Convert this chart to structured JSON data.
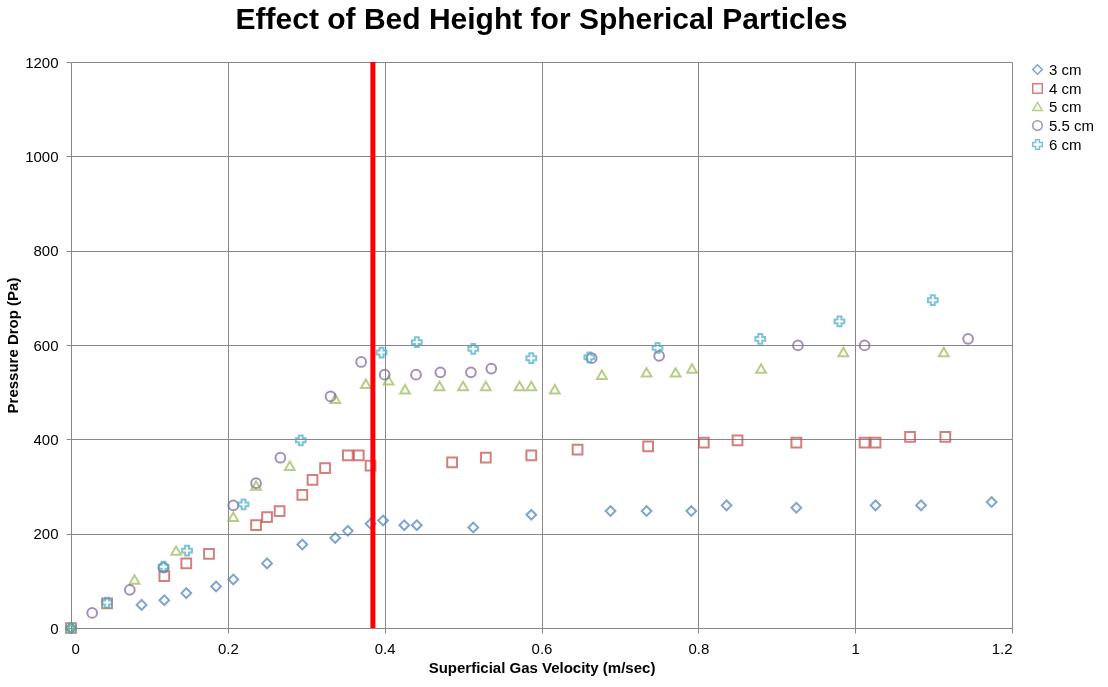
{
  "chart_data": {
    "type": "scatter",
    "title": "Effect of Bed Height for Spherical Particles",
    "xlabel": "Superficial Gas Velocity (m/sec)",
    "ylabel": "Pressure Drop (Pa)",
    "xlim": [
      0,
      1.2
    ],
    "xticks": [
      0,
      0.2,
      0.4,
      0.6,
      0.8,
      1,
      1.2
    ],
    "ylim": [
      0,
      1200
    ],
    "yticks": [
      0,
      200,
      400,
      600,
      800,
      1000,
      1200
    ],
    "grid": true,
    "legend": "right",
    "series": [
      {
        "name": "3 cm",
        "color": "#4a7ebb",
        "marker": "diamond",
        "x": [
          0,
          0.09,
          0.119,
          0.147,
          0.185,
          0.207,
          0.25,
          0.295,
          0.337,
          0.353,
          0.382,
          0.398,
          0.425,
          0.441,
          0.513,
          0.587,
          0.688,
          0.734,
          0.791,
          0.836,
          0.925,
          1.026,
          1.084,
          1.174
        ],
        "values": [
          0,
          49,
          59,
          74,
          88,
          103,
          137,
          177,
          191,
          206,
          221,
          228,
          218,
          218,
          213,
          240,
          248,
          248,
          248,
          260,
          255,
          260,
          260,
          267
        ]
      },
      {
        "name": "4 cm",
        "color": "#be4b48",
        "marker": "square",
        "x": [
          0,
          0.046,
          0.119,
          0.147,
          0.176,
          0.236,
          0.25,
          0.266,
          0.295,
          0.308,
          0.324,
          0.353,
          0.367,
          0.382,
          0.486,
          0.529,
          0.587,
          0.646,
          0.736,
          0.807,
          0.85,
          0.925,
          1.012,
          1.026,
          1.07,
          1.115
        ],
        "values": [
          0,
          52,
          110,
          137,
          157,
          218,
          235,
          248,
          282,
          314,
          339,
          366,
          366,
          344,
          351,
          361,
          366,
          378,
          385,
          393,
          398,
          393,
          393,
          393,
          405,
          405
        ]
      },
      {
        "name": "5 cm",
        "color": "#98b954",
        "marker": "triangle",
        "x": [
          0,
          0.081,
          0.134,
          0.207,
          0.236,
          0.279,
          0.337,
          0.376,
          0.405,
          0.426,
          0.47,
          0.5,
          0.529,
          0.572,
          0.587,
          0.617,
          0.677,
          0.734,
          0.771,
          0.792,
          0.88,
          0.985,
          1.113
        ],
        "values": [
          0,
          103,
          164,
          236,
          302,
          344,
          486,
          518,
          525,
          506,
          513,
          513,
          513,
          513,
          513,
          506,
          537,
          542,
          542,
          550,
          550,
          585,
          585
        ]
      },
      {
        "name": "5.5 cm",
        "color": "#7d60a0",
        "marker": "circle",
        "x": [
          0.027,
          0.075,
          0.118,
          0.207,
          0.236,
          0.267,
          0.331,
          0.37,
          0.4,
          0.44,
          0.471,
          0.51,
          0.536,
          0.664,
          0.75,
          0.927,
          1.012,
          1.144
        ],
        "values": [
          32,
          81,
          128,
          260,
          307,
          361,
          491,
          564,
          537,
          537,
          542,
          542,
          550,
          572,
          577,
          599,
          599,
          613
        ]
      },
      {
        "name": "6 cm",
        "color": "#46aac5",
        "marker": "cross",
        "x": [
          0,
          0.046,
          0.118,
          0.148,
          0.22,
          0.293,
          0.396,
          0.441,
          0.513,
          0.587,
          0.661,
          0.748,
          0.879,
          0.98,
          1.099
        ],
        "values": [
          0,
          54,
          130,
          164,
          262,
          398,
          584,
          606,
          592,
          572,
          574,
          594,
          613,
          650,
          695
        ]
      }
    ],
    "ref_lines": [
      {
        "axis": "x",
        "value": 0.385,
        "color": "#ff0000"
      }
    ]
  }
}
